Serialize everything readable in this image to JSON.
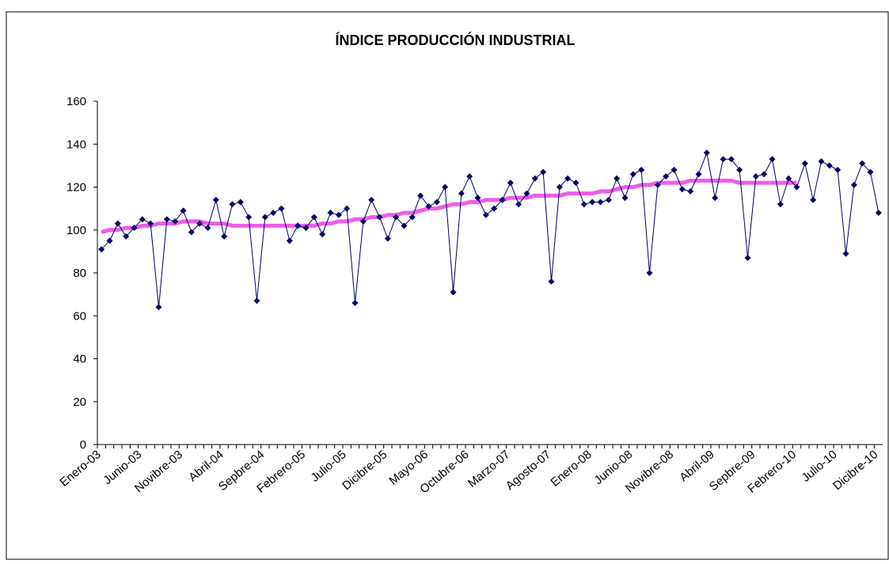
{
  "chart_data": {
    "type": "line",
    "title": "ÍNDICE PRODUCCIÓN INDUSTRIAL",
    "categories": [
      "Enero-03",
      null,
      null,
      null,
      null,
      "Junio-03",
      null,
      null,
      null,
      null,
      "Novibre-03",
      null,
      null,
      null,
      null,
      "Abril-04",
      null,
      null,
      null,
      null,
      "Sepbre-04",
      null,
      null,
      null,
      null,
      "Febrero-05",
      null,
      null,
      null,
      null,
      "Julio-05",
      null,
      null,
      null,
      null,
      "Dicibre-05",
      null,
      null,
      null,
      null,
      "Mayo-06",
      null,
      null,
      null,
      null,
      "Octubre-06",
      null,
      null,
      null,
      null,
      "Marzo-07",
      null,
      null,
      null,
      null,
      "Agosto-07",
      null,
      null,
      null,
      null,
      "Enero-08",
      null,
      null,
      null,
      null,
      "Junio-08",
      null,
      null,
      null,
      null,
      "Novibre-08",
      null,
      null,
      null,
      null,
      "Abril-09",
      null,
      null,
      null,
      null,
      "Sepbre-09",
      null,
      null,
      null,
      null,
      "Febrero-10",
      null,
      null,
      null,
      null,
      "Julio-10",
      null,
      null,
      null,
      null,
      "Dicibre-10"
    ],
    "series": [
      {
        "color": "#000066",
        "values": [
          91,
          95,
          103,
          97,
          101,
          105,
          103,
          64,
          105,
          104,
          109,
          99,
          103,
          101,
          114,
          97,
          112,
          113,
          106,
          67,
          106,
          108,
          110,
          95,
          102,
          101,
          106,
          98,
          108,
          107,
          110,
          66,
          104,
          114,
          106,
          96,
          106,
          102,
          106,
          116,
          111,
          113,
          120,
          71,
          117,
          125,
          115,
          107,
          110,
          114,
          122,
          112,
          117,
          124,
          127,
          76,
          120,
          124,
          122,
          112,
          113,
          113,
          114,
          124,
          115,
          126,
          128,
          80,
          121,
          125,
          128,
          119,
          118,
          126,
          136,
          115,
          133,
          133,
          128,
          87,
          125,
          126,
          133,
          112,
          124,
          120,
          131,
          114,
          132,
          130,
          128,
          89,
          121,
          131,
          127,
          108
        ]
      },
      {
        "color": "#ee5ce8",
        "values": [
          99,
          100,
          100,
          101,
          101,
          102,
          102,
          103,
          103,
          103,
          104,
          104,
          104,
          103,
          103,
          103,
          102,
          102,
          102,
          102,
          102,
          102,
          102,
          102,
          102,
          102,
          102,
          103,
          103,
          104,
          104,
          105,
          105,
          106,
          106,
          107,
          107,
          108,
          108,
          109,
          110,
          110,
          111,
          112,
          112,
          113,
          113,
          114,
          114,
          114,
          115,
          115,
          115,
          116,
          116,
          116,
          116,
          117,
          117,
          117,
          117,
          118,
          118,
          119,
          120,
          120,
          121,
          121,
          122,
          122,
          122,
          122,
          123,
          123,
          123,
          123,
          123,
          123,
          122,
          122,
          122,
          122,
          122,
          122,
          122,
          122,
          null,
          null,
          null,
          null,
          null,
          null,
          null,
          null,
          null,
          null
        ]
      }
    ],
    "ylim": [
      0,
      160
    ],
    "yticks": [
      0,
      20,
      40,
      60,
      80,
      100,
      120,
      140,
      160
    ],
    "grid": false
  }
}
